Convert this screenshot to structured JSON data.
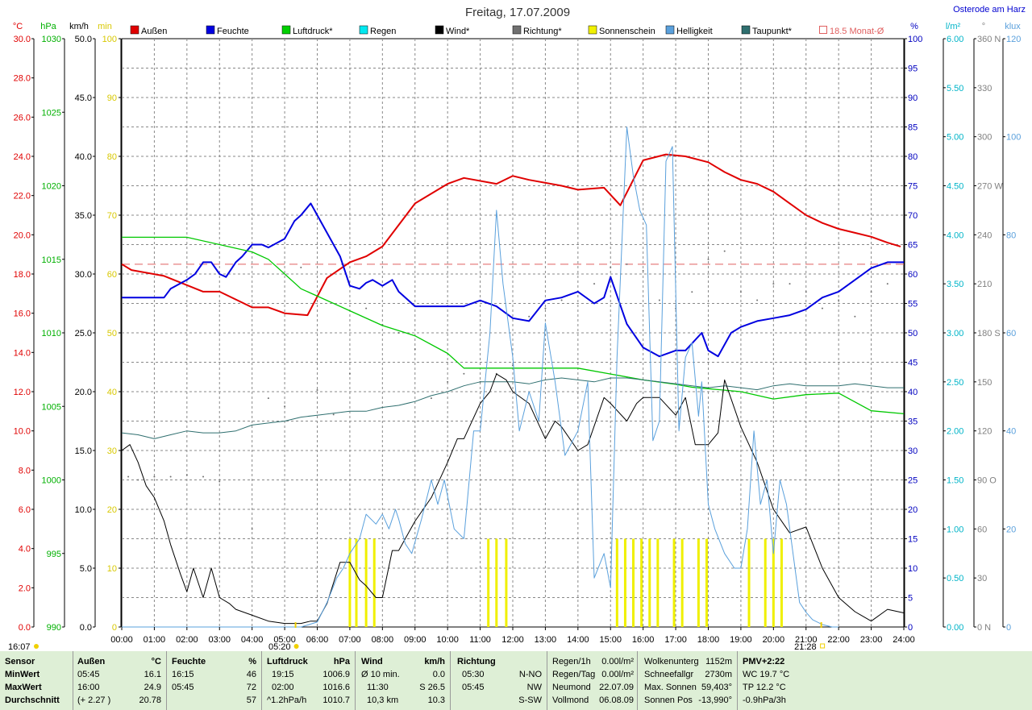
{
  "chart_data": {
    "type": "line",
    "title": "Freitag, 17.07.2009",
    "location": "Osterode am Harz",
    "x_ticks": [
      "00:00",
      "01:00",
      "02:00",
      "03:00",
      "04:00",
      "05:00",
      "06:00",
      "07:00",
      "08:00",
      "09:00",
      "10:00",
      "11:00",
      "12:00",
      "13:00",
      "14:00",
      "15:00",
      "16:00",
      "17:00",
      "18:00",
      "19:00",
      "20:00",
      "21:00",
      "22:00",
      "23:00",
      "24:00"
    ],
    "left_axes": [
      {
        "unit": "°C",
        "color": "#e00000",
        "ticks": [
          "30.0",
          "28.0",
          "26.0",
          "24.0",
          "22.0",
          "20.0",
          "18.0",
          "16.0",
          "14.0",
          "12.0",
          "10.0",
          "8.0",
          "6.0",
          "4.0",
          "2.0",
          "0.0"
        ]
      },
      {
        "unit": "hPa",
        "color": "#00b000",
        "ticks": [
          "1030",
          "1025",
          "1020",
          "1015",
          "1010",
          "1005",
          "1000",
          "995",
          "990"
        ]
      },
      {
        "unit": "km/h",
        "color": "#000000",
        "ticks": [
          "50.0",
          "45.0",
          "40.0",
          "35.0",
          "30.0",
          "25.0",
          "20.0",
          "15.0",
          "10.0",
          "5.0",
          "0.0"
        ]
      },
      {
        "unit": "min",
        "color": "#d8c800",
        "ticks": [
          "100",
          "90",
          "80",
          "70",
          "60",
          "50",
          "40",
          "30",
          "20",
          "10",
          "0"
        ]
      }
    ],
    "right_axes": [
      {
        "unit": "%",
        "color": "#0000c0",
        "ticks": [
          "100",
          "95",
          "90",
          "85",
          "80",
          "75",
          "70",
          "65",
          "60",
          "55",
          "50",
          "45",
          "40",
          "35",
          "30",
          "25",
          "20",
          "15",
          "10",
          "5",
          "0"
        ]
      },
      {
        "unit": "l/m²",
        "color": "#00b4c8",
        "ticks": [
          "6.00",
          "5.50",
          "5.00",
          "4.50",
          "4.00",
          "3.50",
          "3.00",
          "2.50",
          "2.00",
          "1.50",
          "1.00",
          "0.50",
          "0.00"
        ]
      },
      {
        "unit": "°",
        "color": "#808080",
        "ticks": [
          "360 N",
          "330",
          "300",
          "270 W",
          "240",
          "210",
          "180 S",
          "150",
          "120",
          "90 O",
          "60",
          "30",
          "0 N"
        ]
      },
      {
        "unit": "klux",
        "color": "#5aa0dc",
        "ticks": [
          "120",
          "100",
          "80",
          "60",
          "40",
          "20",
          "0"
        ]
      }
    ],
    "legend": [
      {
        "name": "Außen",
        "color": "#e00000"
      },
      {
        "name": "Feuchte",
        "color": "#0000e0"
      },
      {
        "name": "Luftdruck*",
        "color": "#00d000"
      },
      {
        "name": "Regen",
        "color": "#00e8f0"
      },
      {
        "name": "Wind*",
        "color": "#000000"
      },
      {
        "name": "Richtung*",
        "color": "#707070"
      },
      {
        "name": "Sonnenschein",
        "color": "#f0f000"
      },
      {
        "name": "Helligkeit",
        "color": "#5aa0dc"
      },
      {
        "name": "Taupunkt*",
        "color": "#2f6f6f"
      },
      {
        "name": "18.5 Monat-Ø",
        "color": "#e06060",
        "hollow": true
      }
    ],
    "month_avg_temp": 18.5,
    "sunrise": "05:20",
    "sunset": "21:28",
    "start_label": "16:07",
    "series": [
      {
        "name": "Außen",
        "axis": "°C",
        "color": "#e00000",
        "width": 2,
        "x": [
          0,
          0.3,
          1.3,
          2.5,
          3,
          4,
          4.5,
          5,
          5.7,
          6.3,
          7,
          7.5,
          8,
          9,
          10,
          10.5,
          11.5,
          12,
          12.5,
          13.5,
          14,
          14.8,
          15.3,
          16,
          16.7,
          17.3,
          18,
          18.5,
          19,
          19.5,
          20,
          20.5,
          21,
          21.5,
          22,
          22.5,
          23,
          23.5,
          23.9
        ],
        "y": [
          18.5,
          18.2,
          17.9,
          17.1,
          17.1,
          16.3,
          16.3,
          16.0,
          15.9,
          17.8,
          18.6,
          18.9,
          19.4,
          21.6,
          22.6,
          22.9,
          22.6,
          23.0,
          22.8,
          22.5,
          22.3,
          22.4,
          21.5,
          23.8,
          24.1,
          24.0,
          23.7,
          23.2,
          22.8,
          22.6,
          22.2,
          21.6,
          21.0,
          20.6,
          20.3,
          20.1,
          19.9,
          19.6,
          19.4
        ]
      },
      {
        "name": "Feuchte",
        "axis": "%",
        "color": "#0000e0",
        "width": 2,
        "x": [
          0,
          1.3,
          1.5,
          2,
          2.25,
          2.5,
          2.75,
          3,
          3.2,
          3.5,
          3.7,
          4,
          4.3,
          4.5,
          5,
          5.3,
          5.5,
          5.8,
          6,
          6.3,
          6.7,
          7,
          7.3,
          7.5,
          7.7,
          8,
          8.3,
          8.5,
          9,
          9.5,
          10,
          10.5,
          11,
          11.5,
          12,
          12.5,
          13,
          13.5,
          14,
          14.5,
          14.8,
          15,
          15.5,
          16,
          16.5,
          17,
          17.3,
          17.8,
          18,
          18.3,
          18.7,
          19,
          19.5,
          20,
          20.5,
          21,
          21.5,
          22,
          22.5,
          23,
          23.5,
          24
        ],
        "y": [
          56,
          56,
          57.5,
          59,
          60,
          62,
          62,
          60,
          59.5,
          62,
          63,
          65,
          65,
          64.5,
          66,
          69,
          70,
          72,
          70,
          67,
          63,
          58,
          57.5,
          58.5,
          59,
          58,
          59,
          57,
          54.5,
          54.5,
          54.5,
          54.5,
          55.5,
          54.5,
          52.5,
          52,
          55.5,
          56,
          57,
          55,
          56,
          59.5,
          51.5,
          47.5,
          46,
          47,
          47,
          50,
          47,
          46,
          50,
          51,
          52,
          52.5,
          53,
          54,
          56,
          57,
          59,
          61,
          62,
          62
        ]
      },
      {
        "name": "Luftdruck*",
        "axis": "hPa",
        "color": "#00c800",
        "width": 1.3,
        "x": [
          0,
          2,
          3,
          4,
          4.5,
          5,
          5.5,
          6,
          7,
          8,
          9,
          10,
          10.5,
          12,
          14,
          15,
          16,
          17,
          17.5,
          18,
          19,
          20,
          21,
          22,
          23,
          24
        ],
        "y": [
          1016.5,
          1016.5,
          1016,
          1015.5,
          1015,
          1014,
          1013,
          1012.5,
          1011.5,
          1010.5,
          1009.8,
          1008.6,
          1007.6,
          1007.6,
          1007.6,
          1007.2,
          1006.8,
          1006.5,
          1006.3,
          1006.2,
          1006,
          1005.5,
          1005.8,
          1005.9,
          1004.7,
          1004.5
        ]
      },
      {
        "name": "Taupunkt*",
        "axis": "°C",
        "color": "#2f6f6f",
        "width": 1,
        "x": [
          0,
          0.5,
          1,
          1.5,
          2,
          2.5,
          3,
          3.5,
          4,
          4.5,
          5,
          5.5,
          6,
          6.5,
          7,
          7.5,
          8,
          8.5,
          9,
          9.5,
          10,
          10.5,
          11,
          11.5,
          12,
          12.5,
          13,
          13.5,
          14,
          14.5,
          15,
          15.5,
          16,
          16.5,
          17,
          17.5,
          18,
          18.5,
          19,
          19.5,
          20,
          20.5,
          21,
          21.5,
          22,
          22.5,
          23,
          23.5,
          24
        ],
        "y": [
          9.9,
          9.8,
          9.6,
          9.8,
          10,
          9.9,
          9.9,
          10.0,
          10.3,
          10.4,
          10.5,
          10.7,
          10.8,
          10.9,
          11.0,
          11.0,
          11.2,
          11.3,
          11.5,
          11.8,
          12.0,
          12.3,
          12.5,
          12.5,
          12.5,
          12.4,
          12.6,
          12.7,
          12.6,
          12.5,
          12.7,
          12.7,
          12.6,
          12.5,
          12.4,
          12.3,
          12.2,
          12.3,
          12.2,
          12.1,
          12.3,
          12.4,
          12.3,
          12.3,
          12.3,
          12.4,
          12.3,
          12.2,
          12.2
        ]
      },
      {
        "name": "Wind*",
        "axis": "km/h",
        "color": "#000000",
        "width": 1,
        "x": [
          0,
          0.25,
          0.5,
          0.75,
          1,
          1.3,
          1.5,
          1.8,
          2,
          2.2,
          2.5,
          2.75,
          3,
          3.3,
          3.5,
          4,
          4.5,
          5,
          5.5,
          5.8,
          6,
          6.3,
          6.7,
          7,
          7.3,
          7.5,
          7.8,
          8,
          8.3,
          8.5,
          9,
          9.5,
          10,
          10.3,
          10.5,
          11,
          11.3,
          11.5,
          11.8,
          12,
          12.5,
          13,
          13.3,
          13.5,
          14,
          14.3,
          14.8,
          15,
          15.5,
          15.8,
          16,
          16.5,
          17,
          17.3,
          17.6,
          18,
          18.3,
          18.5,
          19,
          19.5,
          20,
          20.5,
          21,
          21.5,
          22,
          22.5,
          23,
          23.5,
          24
        ],
        "y": [
          15,
          15.5,
          14,
          12,
          11,
          9,
          7,
          4.5,
          3,
          5,
          2.5,
          5,
          2.5,
          2,
          1.5,
          1,
          0.5,
          0.3,
          0.3,
          0.5,
          0.5,
          2,
          5.5,
          5.5,
          4,
          3.5,
          2.5,
          2.5,
          6.5,
          6.5,
          9,
          11,
          14,
          16,
          16,
          19,
          20,
          21.5,
          21,
          20,
          19,
          16,
          17.5,
          17,
          15,
          15.5,
          19.5,
          19,
          17.5,
          19,
          19.5,
          19.5,
          18,
          19.5,
          15.5,
          15.5,
          16.5,
          21,
          17,
          14,
          10,
          8,
          8.5,
          5,
          2.5,
          1.3,
          0.5,
          1.5,
          1.2
        ]
      },
      {
        "name": "Helligkeit",
        "axis": "klux",
        "color": "#5aa0dc",
        "width": 1,
        "x": [
          0,
          5.5,
          6,
          6.3,
          6.6,
          6.8,
          7,
          7.3,
          7.5,
          7.8,
          8,
          8.2,
          8.4,
          8.5,
          8.7,
          8.9,
          9.2,
          9.5,
          9.7,
          9.9,
          10.2,
          10.5,
          10.8,
          11,
          11.3,
          11.5,
          11.7,
          12,
          12.2,
          12.5,
          12.8,
          13,
          13.3,
          13.6,
          14,
          14.3,
          14.5,
          14.8,
          15,
          15.2,
          15.5,
          15.7,
          15.9,
          16.1,
          16.3,
          16.5,
          16.7,
          16.9,
          17.1,
          17.3,
          17.5,
          17.7,
          17.8,
          18,
          18.2,
          18.5,
          18.8,
          19,
          19.2,
          19.4,
          19.6,
          19.8,
          20,
          20.2,
          20.4,
          20.6,
          20.8,
          21,
          21.2,
          21.5,
          21.8,
          22
        ],
        "y": [
          0,
          0,
          1,
          5,
          10,
          12,
          15,
          18,
          23,
          21,
          23,
          20,
          24,
          22,
          17,
          15,
          22,
          30,
          25,
          30,
          20,
          18,
          40,
          40,
          60,
          85,
          70,
          55,
          40,
          48,
          42,
          62,
          50,
          35,
          40,
          50,
          10,
          15,
          8,
          55,
          102,
          92,
          85,
          82,
          38,
          42,
          95,
          98,
          40,
          55,
          58,
          43,
          50,
          25,
          20,
          15,
          12,
          12,
          20,
          40,
          25,
          30,
          15,
          30,
          25,
          15,
          5,
          3,
          1.5,
          0.5,
          0,
          0
        ]
      },
      {
        "name": "Sonnenschein",
        "axis": "min",
        "color": "#f0f000",
        "type": "bars",
        "x": [
          7.0,
          7.2,
          7.5,
          7.75,
          11.25,
          11.5,
          11.8,
          15.2,
          15.45,
          15.7,
          15.95,
          16.2,
          16.45,
          16.95,
          17.2,
          17.7,
          17.95,
          19.25,
          19.75,
          20.0,
          20.25
        ],
        "y": [
          15,
          15,
          15,
          15,
          15,
          15,
          15,
          15,
          15,
          15,
          15,
          15,
          15,
          15,
          15,
          15,
          15,
          15,
          15,
          15,
          15
        ]
      },
      {
        "name": "Richtung*",
        "axis": "°",
        "color": "#707070",
        "type": "dots",
        "x": [
          0.2,
          0.5,
          1,
          1.5,
          2,
          2.5,
          3,
          4,
          4.5,
          5,
          5.5,
          6,
          6.5,
          7,
          7.5,
          8,
          8.5,
          9,
          9.5,
          10,
          10.5,
          11,
          11.5,
          12,
          12.5,
          13,
          13.5,
          14,
          14.5,
          15,
          15.5,
          16,
          16.5,
          17,
          17.5,
          18,
          18.5,
          19,
          19.5,
          20,
          20.5,
          21,
          21.5,
          22,
          22.5,
          23,
          23.5
        ],
        "y": [
          92,
          90,
          92,
          92,
          93,
          92,
          89,
          60,
          140,
          135,
          220,
          145,
          130,
          155,
          195,
          185,
          180,
          170,
          140,
          150,
          155,
          150,
          155,
          160,
          190,
          195,
          200,
          205,
          210,
          220,
          222,
          218,
          200,
          195,
          205,
          225,
          230,
          205,
          200,
          210,
          210,
          205,
          195,
          200,
          190,
          205,
          210
        ]
      }
    ]
  },
  "stats": {
    "header": {
      "sensor": "Sensor",
      "aussen": "Außen",
      "aussen_unit": "°C",
      "feuchte": "Feuchte",
      "feuchte_unit": "%",
      "luftdruck": "Luftdruck",
      "luftdruck_unit": "hPa",
      "wind": "Wind",
      "wind_unit": "km/h",
      "richtung": "Richtung"
    },
    "rows": [
      {
        "label": "MinWert",
        "a_time": "05:45",
        "a_val": "16.1",
        "f_time": "16:15",
        "f_val": "46",
        "l_time": "19:15",
        "l_val": "1006.9",
        "w_time": "Ø 10 min.",
        "w_val": "0.0",
        "r_time": "05:30",
        "r_val": "N-NO"
      },
      {
        "label": "MaxWert",
        "a_time": "16:00",
        "a_val": "24.9",
        "f_time": "05:45",
        "f_val": "72",
        "l_time": "02:00",
        "l_val": "1016.6",
        "w_time": "11:30",
        "w_val": "S 26.5",
        "r_time": "05:45",
        "r_val": "NW"
      },
      {
        "label": "Durchschnitt",
        "a_time": "(+ 2.27 )",
        "a_val": "20.78",
        "f_time": "",
        "f_val": "57",
        "l_time": "^1.2hPa/h",
        "l_val": "1010.7",
        "w_time": "10,3 km",
        "w_val": "10.3",
        "r_time": "",
        "r_val": "S-SW"
      }
    ],
    "rain": [
      {
        "label": "Regen/1h",
        "value": "0.00l/m²"
      },
      {
        "label": "Regen/Tag",
        "value": "0.00l/m²"
      },
      {
        "label": "Neumond",
        "value": "22.07.09"
      },
      {
        "label": "Vollmond",
        "value": "06.08.09"
      }
    ],
    "cloud": [
      {
        "label": "Wolkenunterg",
        "value": "1152m"
      },
      {
        "label": "Schneefallgr",
        "value": "2730m"
      },
      {
        "label": "Max. Sonnen",
        "value": "59,403°"
      },
      {
        "label": "Sonnen Pos",
        "value": "-13,990°"
      }
    ],
    "pmv": [
      "PMV+2:22",
      "WC 19.7 °C",
      "TP 12.2 °C",
      "-0.9hPa/3h"
    ]
  }
}
